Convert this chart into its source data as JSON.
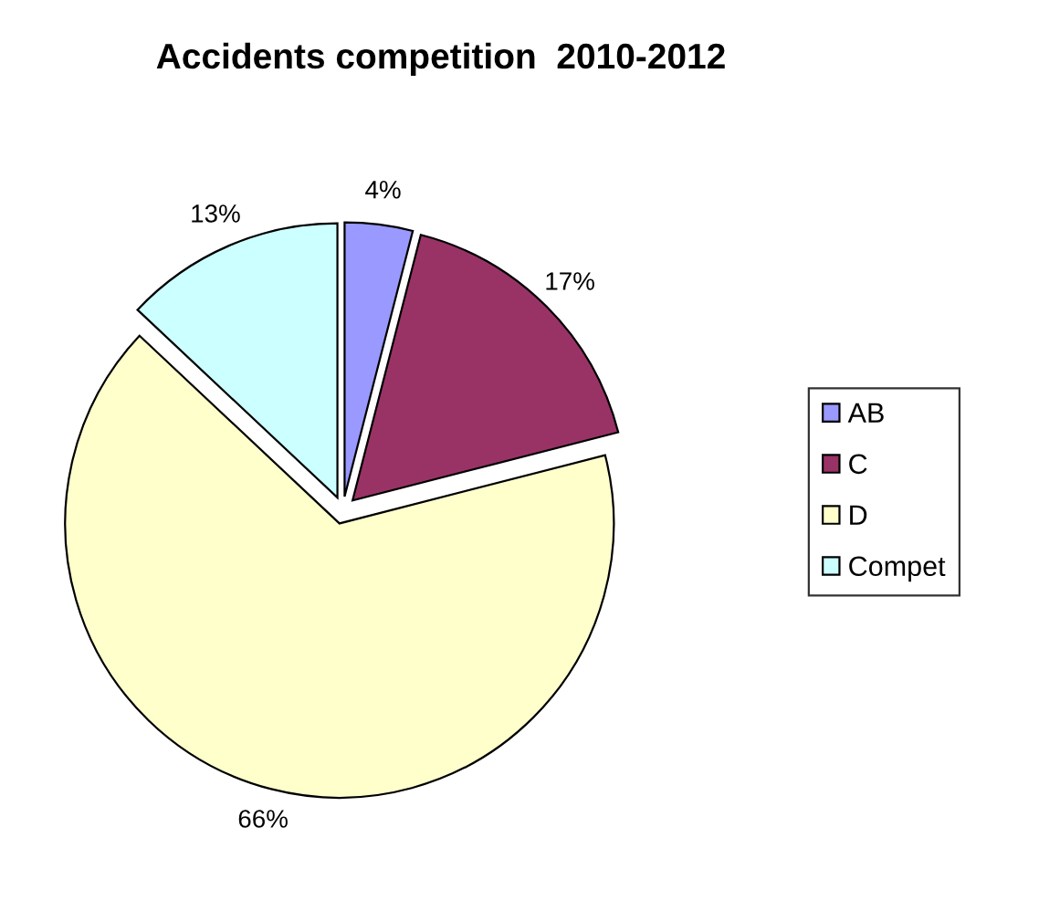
{
  "chart_data": {
    "type": "pie",
    "title": "Accidents competition  2010-2012",
    "categories": [
      "AB",
      "C",
      "D",
      "Compet"
    ],
    "values": [
      4,
      17,
      66,
      13
    ],
    "value_labels": [
      "4%",
      "17%",
      "66%",
      "13%"
    ],
    "colors": [
      "#9999ff",
      "#993366",
      "#ffffcc",
      "#ccffff"
    ],
    "legend": "right"
  }
}
